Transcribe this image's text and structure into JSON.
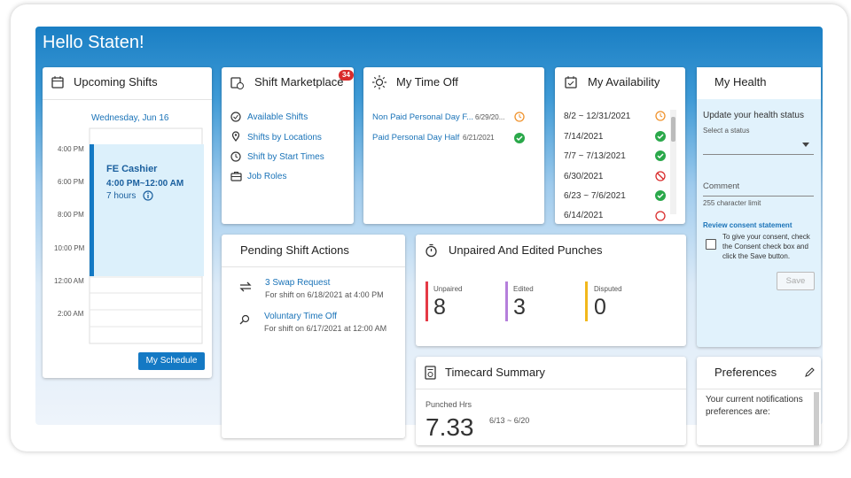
{
  "header": {
    "title": "Hello Staten!"
  },
  "upcoming_shifts": {
    "title": "Upcoming Shifts",
    "date": "Wednesday, Jun 16",
    "times": [
      "4:00 PM",
      "6:00 PM",
      "8:00 PM",
      "10:00 PM",
      "12:00 AM",
      "2:00 AM"
    ],
    "shift": {
      "name": "FE Cashier",
      "time": "4:00 PM~12:00 AM",
      "duration": "7 hours"
    },
    "button": "My Schedule"
  },
  "shift_marketplace": {
    "title": "Shift Marketplace",
    "badge": "34",
    "links": [
      "Available Shifts",
      "Shifts by Locations",
      "Shift by Start Times",
      "Job Roles"
    ]
  },
  "time_off": {
    "title": "My Time Off",
    "items": [
      {
        "label": "Non Paid Personal Day F...",
        "date": "6/29/20..."
      },
      {
        "label": "Paid Personal Day Half",
        "date": "6/21/2021"
      }
    ]
  },
  "availability": {
    "title": "My Availability",
    "items": [
      "8/2 ~ 12/31/2021",
      "7/14/2021",
      "7/7 ~ 7/13/2021",
      "6/30/2021",
      "6/23 ~ 7/6/2021",
      "6/14/2021"
    ]
  },
  "health": {
    "title": "My Health",
    "prompt": "Update your health status",
    "select_label": "Select a status",
    "comment_label": "Comment",
    "char_limit": "255 character limit",
    "consent_link": "Review consent statement",
    "consent_text": "To give your consent, check the Consent check box and click the Save button.",
    "save_button": "Save"
  },
  "pending": {
    "title": "Pending Shift Actions",
    "items": [
      {
        "label": "3 Swap Request",
        "detail": "For shift on 6/18/2021 at 4:00 PM"
      },
      {
        "label": "Voluntary Time Off",
        "detail": "For shift on 6/17/2021 at 12:00 AM"
      }
    ]
  },
  "punches": {
    "title": "Unpaired And Edited Punches",
    "stats": [
      {
        "label": "Unpaired",
        "value": "8"
      },
      {
        "label": "Edited",
        "value": "3"
      },
      {
        "label": "Disputed",
        "value": "0"
      }
    ]
  },
  "timecard": {
    "title": "Timecard Summary",
    "label": "Punched Hrs",
    "range": "6/13 ~ 6/20",
    "value": "7.33"
  },
  "preferences": {
    "title": "Preferences",
    "text": "Your current notifications preferences are:"
  }
}
